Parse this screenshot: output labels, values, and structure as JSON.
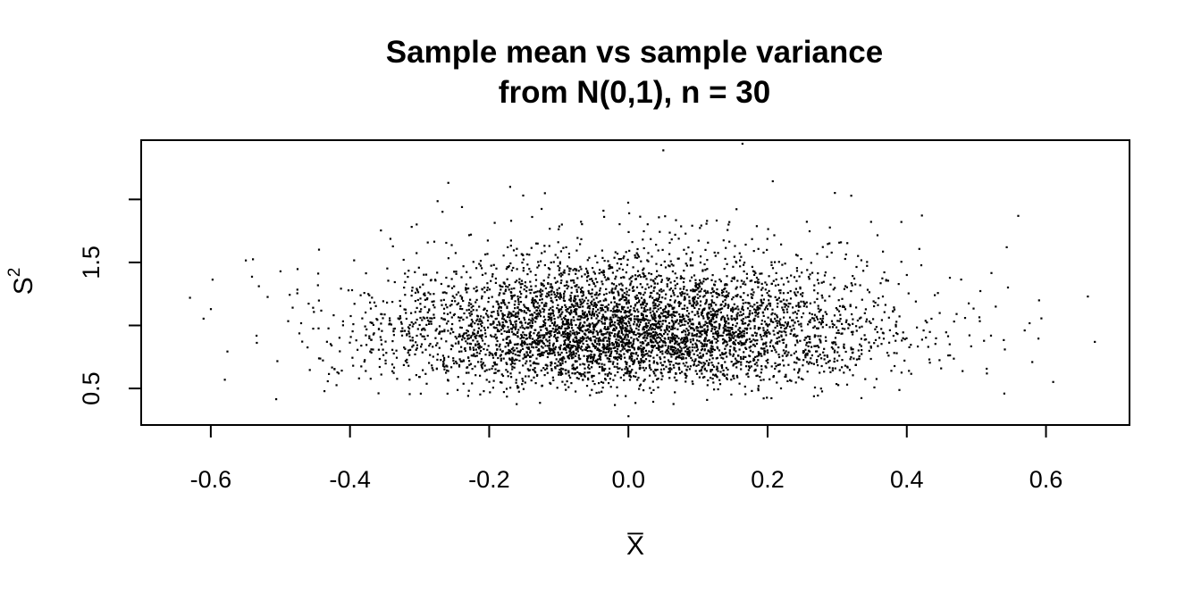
{
  "chart_data": {
    "type": "scatter",
    "title": "Sample mean vs sample variance",
    "subtitle": "from N(0,1), n = 30",
    "xlabel": "X̅",
    "ylabel": "S",
    "ylabel_superscript": "2",
    "xlim": [
      -0.7,
      0.72
    ],
    "ylim": [
      0.21,
      2.47
    ],
    "x_ticks": [
      -0.6,
      -0.4,
      -0.2,
      0.0,
      0.2,
      0.4,
      0.6
    ],
    "x_tick_labels": [
      "-0.6",
      "-0.4",
      "-0.2",
      "0.0",
      "0.2",
      "0.4",
      "0.6"
    ],
    "y_ticks": [
      0.5,
      1.0,
      1.5,
      2.0
    ],
    "y_tick_labels": [
      "0.5",
      "",
      "1.5",
      ""
    ],
    "grid": false,
    "legend": "none",
    "point_color": "#000000",
    "n_points": 5000,
    "notable_points": [
      {
        "x": 0.05,
        "y": 2.39
      },
      {
        "x": -0.17,
        "y": 2.1
      },
      {
        "x": -0.63,
        "y": 1.22
      },
      {
        "x": -0.58,
        "y": 0.57
      },
      {
        "x": 0.0,
        "y": 0.28
      },
      {
        "x": 0.54,
        "y": 0.46
      },
      {
        "x": 0.67,
        "y": 0.87
      },
      {
        "x": 0.66,
        "y": 1.23
      },
      {
        "x": 0.32,
        "y": 2.03
      },
      {
        "x": -0.12,
        "y": 2.05
      },
      {
        "x": 0.56,
        "y": 1.87
      },
      {
        "x": -0.5,
        "y": 1.43
      },
      {
        "x": 0.59,
        "y": 1.2
      },
      {
        "x": -0.6,
        "y": 1.13
      }
    ]
  }
}
